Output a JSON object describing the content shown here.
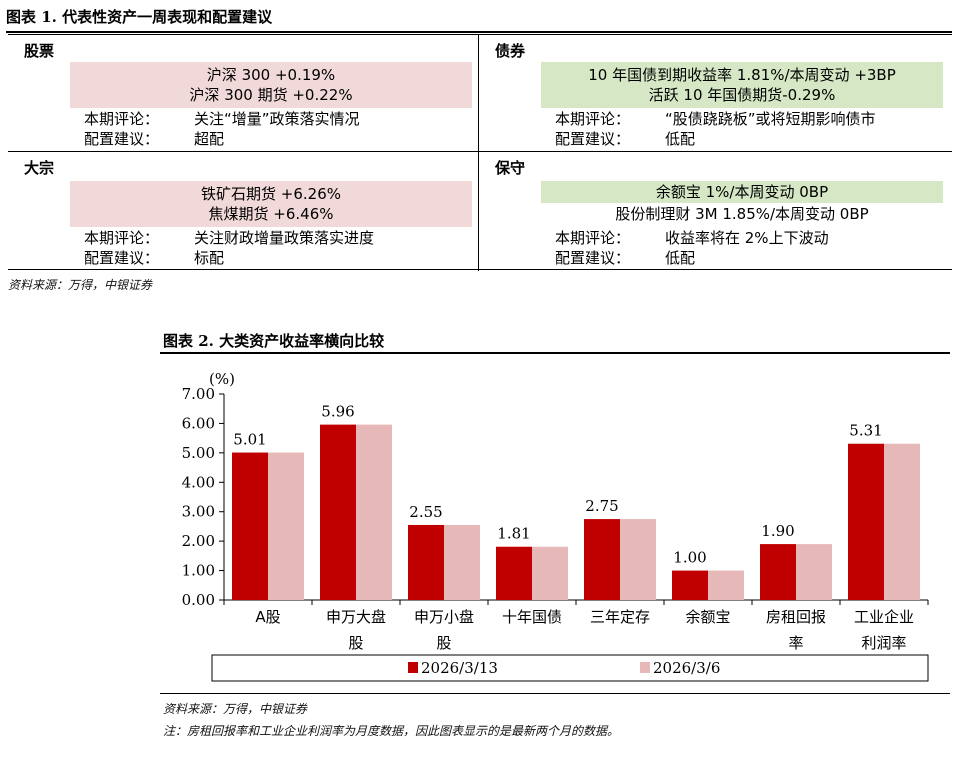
{
  "figure1": {
    "title": "图表 1. 代表性资产一周表现和配置建议",
    "source": "资料来源：万得，中银证券",
    "cells": {
      "stock": {
        "name": "股票",
        "line1": "沪深 300 +0.19%",
        "line2": "沪深 300 期货 +0.22%",
        "comment_label": "本期评论：",
        "comment": "关注“增量”政策落实情况",
        "advice_label": "配置建议：",
        "advice": "超配"
      },
      "bond": {
        "name": "债券",
        "line1": "10 年国债到期收益率 1.81%/本周变动 +3BP",
        "line2": "活跃 10 年国债期货-0.29%",
        "comment_label": "本期评论：",
        "comment": "“股债跷跷板”或将短期影响债市",
        "advice_label": "配置建议：",
        "advice": "低配"
      },
      "commodity": {
        "name": "大宗",
        "line1": "铁矿石期货 +6.26%",
        "line2": "焦煤期货 +6.46%",
        "comment_label": "本期评论：",
        "comment": "关注财政增量政策落实进度",
        "advice_label": "配置建议：",
        "advice": "标配"
      },
      "cash": {
        "name": "保守",
        "line1": "余额宝 1%/本周变动 0BP",
        "line2": "股份制理财 3M 1.85%/本周变动 0BP",
        "comment_label": "本期评论：",
        "comment": "收益率将在 2%上下波动",
        "advice_label": "配置建议：",
        "advice": "低配"
      }
    },
    "colors": {
      "pink_shade": "#f1d9d9",
      "green_shade": "#d5e7c4"
    }
  },
  "figure2": {
    "title": "图表 2. 大类资产收益率横向比较",
    "source": "资料来源：万得，中银证券",
    "note": "注：房租回报率和工业企业利润率为月度数据，因此图表显示的是最新两个月的数据。"
  },
  "chart_data": {
    "type": "bar",
    "ylabel": "(%)",
    "ylim": [
      0,
      7
    ],
    "yticks": [
      "0.00",
      "1.00",
      "2.00",
      "3.00",
      "4.00",
      "5.00",
      "6.00",
      "7.00"
    ],
    "categories": [
      [
        "A股"
      ],
      [
        "申万大盘",
        "股"
      ],
      [
        "申万小盘",
        "股"
      ],
      [
        "十年国债"
      ],
      [
        "三年定存"
      ],
      [
        "余额宝"
      ],
      [
        "房租回报",
        "率"
      ],
      [
        "工业企业",
        "利润率"
      ]
    ],
    "series": [
      {
        "name": "2026/3/13",
        "color": "#c00000",
        "values": [
          5.01,
          5.96,
          2.55,
          1.81,
          2.75,
          1.0,
          1.9,
          5.31
        ]
      },
      {
        "name": "2026/3/6",
        "color": "#e6b8b8",
        "values": [
          5.01,
          5.96,
          2.55,
          1.81,
          2.75,
          1.0,
          1.9,
          5.31
        ]
      }
    ],
    "data_labels": [
      "5.01",
      "5.96",
      "2.55",
      "1.81",
      "2.75",
      "1.00",
      "1.90",
      "5.31"
    ],
    "legend_position": "bottom"
  }
}
